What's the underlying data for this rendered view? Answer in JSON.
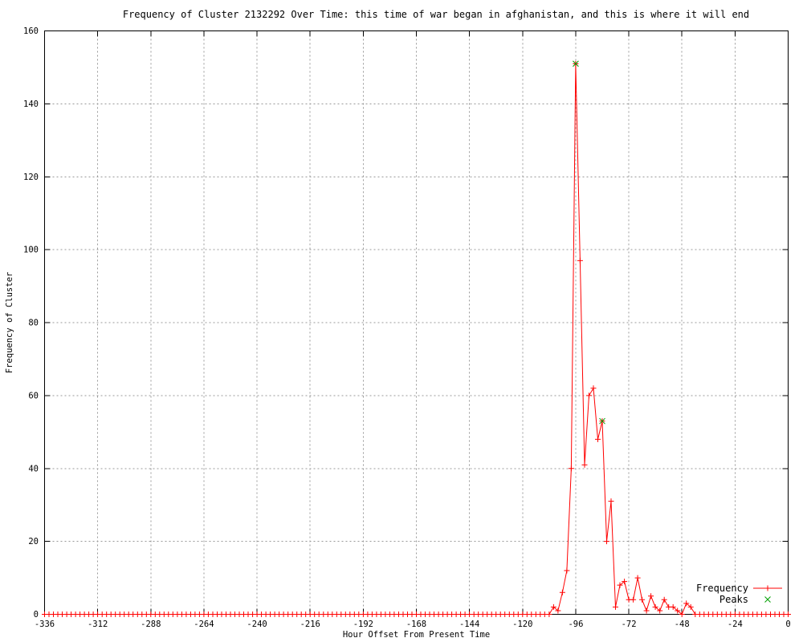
{
  "chart_data": {
    "type": "line",
    "title": "Frequency of Cluster 2132292 Over Time: this time of war began in afghanistan, and this is where it will end",
    "xlabel": "Hour Offset From Present Time",
    "ylabel": "Frequency of Cluster",
    "xlim": [
      -336,
      0
    ],
    "ylim": [
      0,
      160
    ],
    "xticks": [
      -336,
      -312,
      -288,
      -264,
      -240,
      -216,
      -192,
      -168,
      -144,
      -120,
      -96,
      -72,
      -48,
      -24,
      0
    ],
    "yticks": [
      0,
      20,
      40,
      60,
      80,
      100,
      120,
      140,
      160
    ],
    "grid": true,
    "legend_position": "inside-bottom-right",
    "colors": {
      "background": "#ffffff",
      "axis": "#000000",
      "grid": "#999999",
      "frequency": "#ff0000",
      "peaks": "#00a000"
    },
    "series": [
      {
        "name": "Frequency",
        "color": "#ff0000",
        "marker": "plus",
        "x_step": 2,
        "segments": [
          {
            "from": -336,
            "to": -110,
            "value": 0
          },
          {
            "from": -108,
            "values": [
              0,
              2,
              1,
              6,
              12,
              40,
              151,
              97,
              41,
              60,
              62,
              48,
              53,
              20,
              31,
              2,
              8,
              9,
              4,
              4,
              10,
              4,
              1,
              5,
              2,
              1,
              4,
              2,
              2,
              1,
              0,
              3,
              2
            ]
          },
          {
            "from": -42,
            "to": 0,
            "value": 0
          }
        ]
      },
      {
        "name": "Peaks",
        "color": "#00a000",
        "marker": "cross",
        "points": [
          [
            -96,
            151
          ],
          [
            -84,
            53
          ]
        ]
      }
    ],
    "legend": {
      "items": [
        {
          "label": "Frequency",
          "color": "#ff0000",
          "marker": "plus-line"
        },
        {
          "label": "Peaks",
          "color": "#00a000",
          "marker": "cross"
        }
      ]
    }
  }
}
